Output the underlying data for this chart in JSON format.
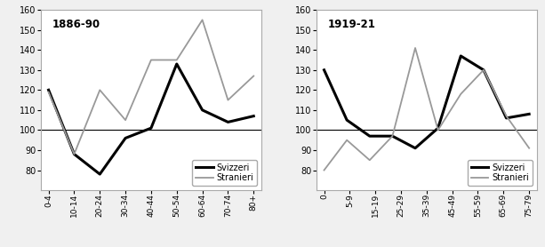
{
  "panel1": {
    "title": "1886-90",
    "categories": [
      "0-4",
      "10-14",
      "20-24",
      "30-34",
      "40-44",
      "50-54",
      "60-64",
      "70-74",
      "80+"
    ],
    "svizzeri": [
      120,
      88,
      78,
      96,
      101,
      133,
      110,
      104,
      107
    ],
    "stranieri": [
      119,
      88,
      120,
      105,
      135,
      135,
      155,
      115,
      127
    ],
    "ylim": [
      70,
      160
    ],
    "yticks": [
      80,
      90,
      100,
      110,
      120,
      130,
      140,
      150,
      160
    ]
  },
  "panel2": {
    "title": "1919-21",
    "categories": [
      "0",
      "5-9",
      "15-19",
      "25-29",
      "35-39",
      "45-49",
      "55-59",
      "65-69",
      "75-79"
    ],
    "svizzeri": [
      130,
      105,
      97,
      97,
      91,
      101,
      137,
      130,
      106,
      108
    ],
    "stranieri": [
      80,
      95,
      85,
      97,
      141,
      100,
      118,
      130,
      107,
      91
    ],
    "svizzeri_x": [
      0,
      1,
      2,
      3,
      4,
      5,
      6,
      7,
      8,
      8.5
    ],
    "stranieri_x": [
      0,
      1,
      2,
      3,
      4,
      5,
      6,
      7,
      8,
      8.5
    ],
    "ylim": [
      70,
      160
    ],
    "yticks": [
      80,
      90,
      100,
      110,
      120,
      130,
      140,
      150,
      160
    ]
  },
  "svizzeri_color": "#000000",
  "stranieri_color": "#999999",
  "svizzeri_lw": 2.2,
  "stranieri_lw": 1.3,
  "hline_color": "#000000",
  "hline_lw": 0.8,
  "bg_color": "#f0f0f0",
  "plot_bg": "#ffffff",
  "legend_svizzeri": "Svizzeri",
  "legend_stranieri": "Stranieri",
  "border_color": "#aaaaaa"
}
